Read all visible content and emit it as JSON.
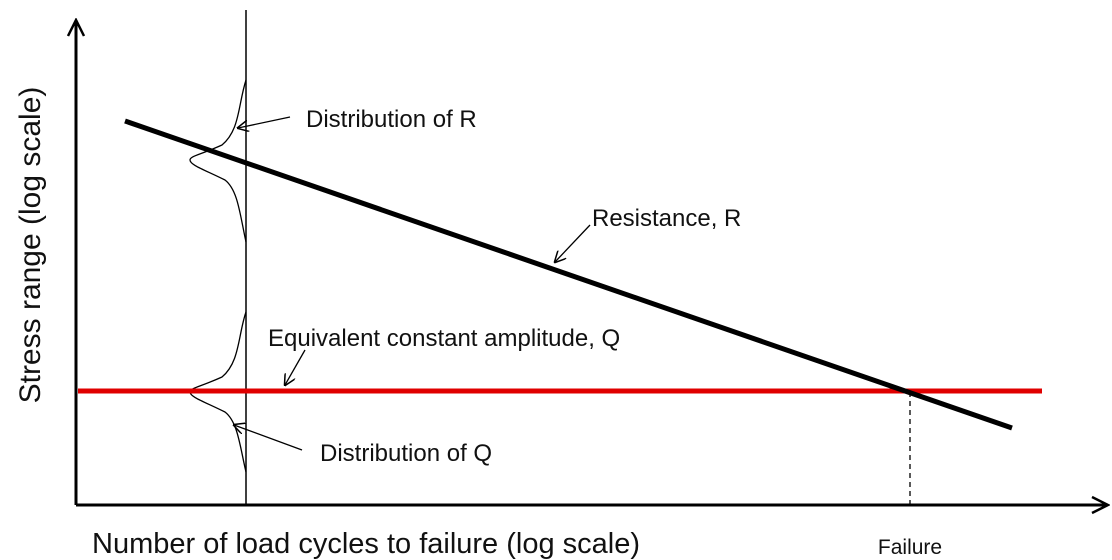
{
  "axes": {
    "y_label": "Stress range (log scale)",
    "x_label": "Number of load cycles to failure (log scale)",
    "failure_label": "Failure"
  },
  "annotations": {
    "distribution_r": "Distribution of R",
    "resistance": "Resistance, R",
    "load": "Equivalent constant amplitude, Q",
    "distribution_q": "Distribution of Q"
  }
}
